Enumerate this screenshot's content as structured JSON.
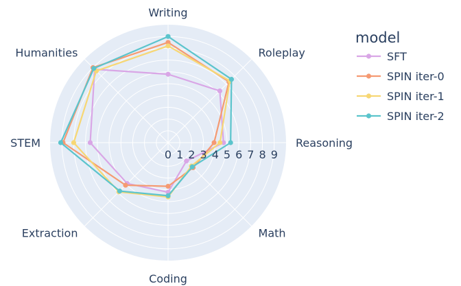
{
  "chart_data": {
    "type": "radar",
    "categories": [
      "Writing",
      "Roleplay",
      "Reasoning",
      "Math",
      "Coding",
      "Extraction",
      "STEM",
      "Humanities"
    ],
    "radial_ticks": [
      "0",
      "1",
      "2",
      "3",
      "4",
      "5",
      "6",
      "7",
      "8",
      "9"
    ],
    "rmax": 10,
    "legend": {
      "title": "model",
      "placement": "top-right"
    },
    "series": [
      {
        "name": "SFT",
        "color": "#d9a6e6",
        "values": [
          5.8,
          6.2,
          4.7,
          2.2,
          4.2,
          4.9,
          6.6,
          8.8
        ]
      },
      {
        "name": "SPIN iter-0",
        "color": "#f59a72",
        "values": [
          8.5,
          7.3,
          3.9,
          3.0,
          3.7,
          5.1,
          8.9,
          9.0
        ]
      },
      {
        "name": "SPIN iter-1",
        "color": "#f7d774",
        "values": [
          8.2,
          7.4,
          4.4,
          2.8,
          4.6,
          5.9,
          8.0,
          8.6
        ]
      },
      {
        "name": "SPIN iter-2",
        "color": "#5bc4cc",
        "values": [
          9.0,
          7.6,
          5.3,
          2.9,
          4.5,
          5.8,
          9.1,
          8.9
        ]
      }
    ]
  }
}
